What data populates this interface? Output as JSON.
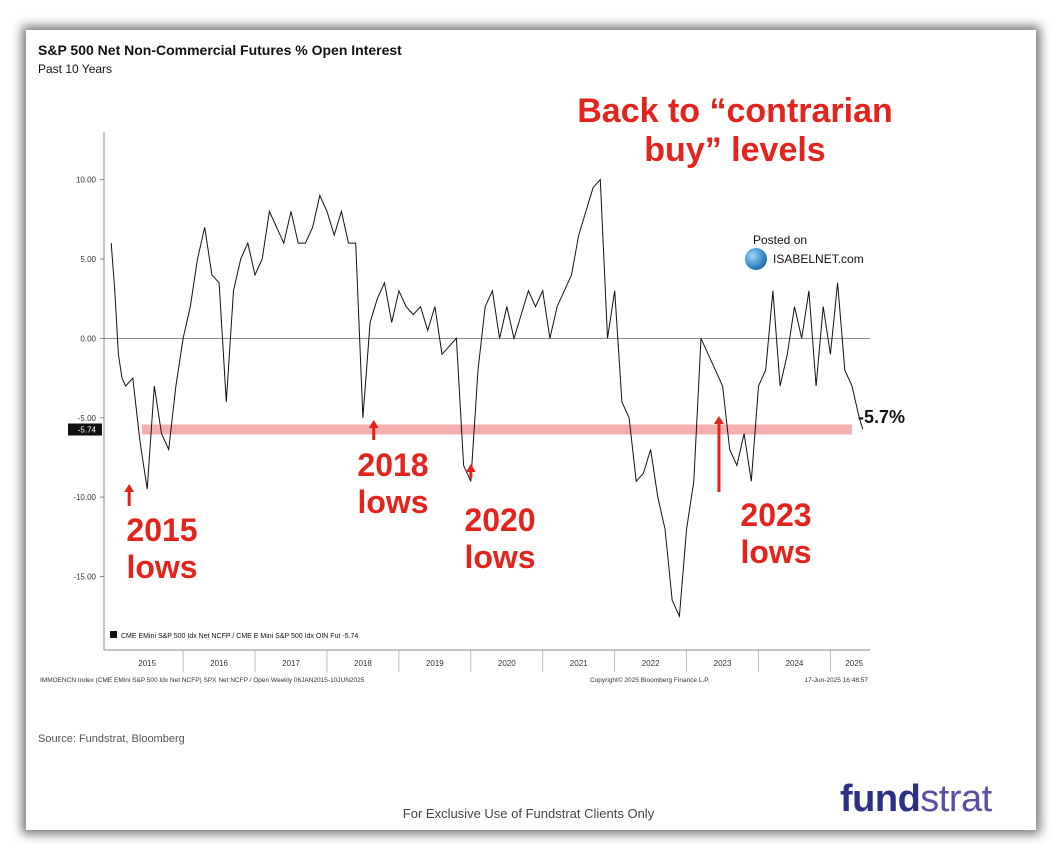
{
  "title": "S&P 500 Net Non-Commercial Futures % Open Interest",
  "subtitle": "Past 10 Years",
  "headline": {
    "line1": "Back to “contrarian",
    "line2": "buy” levels"
  },
  "posted": {
    "line1": "Posted on",
    "line2": "ISABELNET.com"
  },
  "current_value_label": "-5.7%",
  "source": "Source: Fundstrat, Bloomberg",
  "exclusive": "For Exclusive Use of Fundstrat Clients Only",
  "logo": {
    "part1": "fund",
    "part2": "strat"
  },
  "footer_left": "IMMOENCN Index (CME EMini S&P 500 Idx Net NCFP) SPX Net NCFP / Open  Weekly 06JAN2015-10JUN2025",
  "footer_mid": "Copyright© 2025 Bloomberg Finance L.P.",
  "footer_right": "17-Jun-2025 16:48:57",
  "lows": [
    {
      "year": "2015",
      "word": "lows",
      "date": 2015.25
    },
    {
      "year": "2018",
      "word": "lows",
      "date": 2018.65
    },
    {
      "year": "2020",
      "word": "lows",
      "date": 2020.0
    },
    {
      "year": "2023",
      "word": "lows",
      "date": 2023.45
    }
  ],
  "colors": {
    "callout": "#e3231c",
    "band": "#f4a6a6",
    "line": "#111111",
    "logo": "#2b2f86"
  },
  "chart_data": {
    "type": "line",
    "legend": "CME EMini S&P 500 Idx Net NCFP / CME E Mini S&P 500 Idx OIN Fut  -5.74",
    "legend_position": "bottom-left",
    "ylim": [
      -19,
      13
    ],
    "yticks": [
      10,
      5,
      0,
      -5,
      -10,
      -15
    ],
    "ytick_labels": [
      "10.00",
      "5.00",
      "0.00",
      "-5.00",
      "-10.00",
      "-15.00"
    ],
    "xlim": [
      2014.9,
      2025.55
    ],
    "xtick_labels": [
      "2015",
      "2016",
      "2017",
      "2018",
      "2019",
      "2020",
      "2021",
      "2022",
      "2023",
      "2024",
      "2025"
    ],
    "last_value_label": "-5.74",
    "reference_line": -5.74,
    "zero_line": 0,
    "series": [
      {
        "x": [
          2015.0,
          2015.05,
          2015.1,
          2015.15,
          2015.2,
          2015.3,
          2015.4,
          2015.45,
          2015.5,
          2015.6,
          2015.7,
          2015.8,
          2015.9,
          2016.0,
          2016.1,
          2016.2,
          2016.3,
          2016.4,
          2016.5,
          2016.6,
          2016.7,
          2016.8,
          2016.9,
          2017.0,
          2017.1,
          2017.2,
          2017.3,
          2017.4,
          2017.5,
          2017.6,
          2017.7,
          2017.8,
          2017.9,
          2018.0,
          2018.1,
          2018.2,
          2018.3,
          2018.4,
          2018.5,
          2018.6,
          2018.7,
          2018.8,
          2018.9,
          2019.0,
          2019.1,
          2019.2,
          2019.3,
          2019.4,
          2019.5,
          2019.6,
          2019.7,
          2019.8,
          2019.9,
          2020.0,
          2020.1,
          2020.2,
          2020.3,
          2020.4,
          2020.5,
          2020.6,
          2020.7,
          2020.8,
          2020.9,
          2021.0,
          2021.1,
          2021.2,
          2021.3,
          2021.4,
          2021.5,
          2021.6,
          2021.7,
          2021.8,
          2021.9,
          2022.0,
          2022.1,
          2022.2,
          2022.3,
          2022.4,
          2022.5,
          2022.6,
          2022.7,
          2022.8,
          2022.9,
          2023.0,
          2023.1,
          2023.2,
          2023.3,
          2023.4,
          2023.5,
          2023.6,
          2023.7,
          2023.8,
          2023.9,
          2024.0,
          2024.1,
          2024.2,
          2024.3,
          2024.4,
          2024.5,
          2024.6,
          2024.7,
          2024.8,
          2024.9,
          2025.0,
          2025.1,
          2025.2,
          2025.3,
          2025.4,
          2025.45
        ],
        "values": [
          6,
          3,
          -1,
          -2.5,
          -3,
          -2.5,
          -6.5,
          -8,
          -9.5,
          -3,
          -6,
          -7,
          -3,
          0,
          2,
          5,
          7,
          4,
          3.5,
          -4,
          3,
          5,
          6,
          4,
          5,
          8,
          7,
          6,
          8,
          6,
          6,
          7,
          9,
          8,
          6.5,
          8,
          6,
          6,
          -5,
          1,
          2.5,
          3.5,
          1,
          3,
          2,
          1.5,
          2,
          0.5,
          2,
          -1,
          -0.5,
          0,
          -8,
          -9,
          -2,
          2,
          3,
          0,
          2,
          0,
          1.5,
          3,
          2,
          3,
          0,
          2,
          3,
          4,
          6.5,
          8,
          9.5,
          10,
          0,
          3,
          -4,
          -5,
          -9,
          -8.5,
          -7,
          -10,
          -12,
          -16.5,
          -17.5,
          -12,
          -9,
          0,
          -1,
          -2,
          -3,
          -7,
          -8,
          -6,
          -9,
          -3,
          -2,
          3,
          -3,
          -1,
          2,
          0,
          3,
          -3,
          2,
          -1,
          3.5,
          -2,
          -3,
          -5,
          -5.74
        ]
      }
    ]
  }
}
